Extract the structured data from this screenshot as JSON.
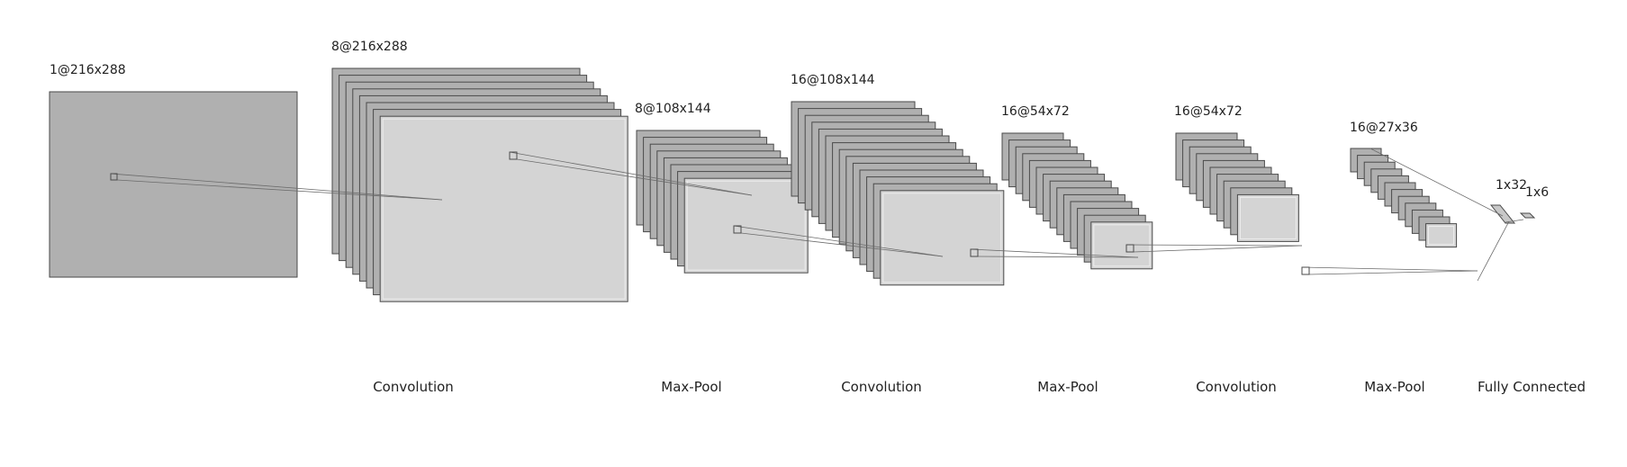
{
  "layers": [
    {
      "label": "1@216x288",
      "fill": "#b0b0b0"
    },
    {
      "label": "8@216x288",
      "fill": "#b0b0b0",
      "front_fill": "#d4d4d4"
    },
    {
      "label": "8@108x144",
      "fill": "#b0b0b0",
      "front_fill": "#d4d4d4"
    },
    {
      "label": "16@108x144",
      "fill": "#b0b0b0",
      "front_fill": "#d4d4d4"
    },
    {
      "label": "16@54x72",
      "fill": "#b0b0b0",
      "front_fill": "#d4d4d4"
    },
    {
      "label": "16@54x72",
      "fill": "#b0b0b0",
      "front_fill": "#d4d4d4"
    },
    {
      "label": "16@27x36",
      "fill": "#b0b0b0",
      "front_fill": "#d4d4d4"
    }
  ],
  "dense_layers": [
    {
      "label": "1x32"
    },
    {
      "label": "1x6"
    }
  ],
  "operations": [
    {
      "label": "Convolution"
    },
    {
      "label": "Max-Pool"
    },
    {
      "label": "Convolution"
    },
    {
      "label": "Max-Pool"
    },
    {
      "label": "Convolution"
    },
    {
      "label": "Max-Pool"
    },
    {
      "label": "Fully Connected"
    }
  ],
  "colors": {
    "stroke": "#4a4a4a",
    "line": "#6b6b6b",
    "text": "#222222"
  }
}
